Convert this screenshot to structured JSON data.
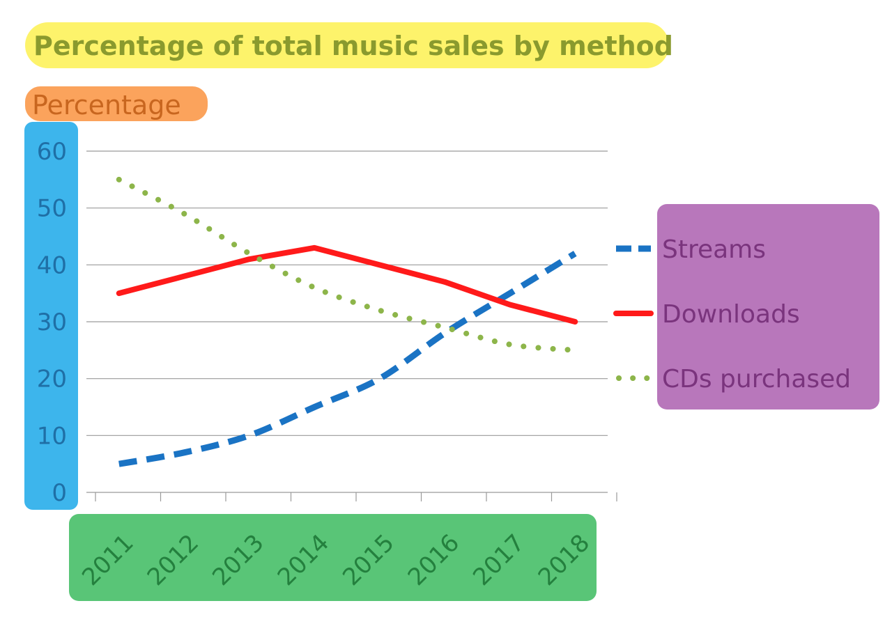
{
  "chart_data": {
    "type": "line",
    "title": "Percentage of total music sales by method",
    "ylabel": "Percentage",
    "xlabel": "",
    "categories": [
      "2011",
      "2012",
      "2013",
      "2014",
      "2015",
      "2016",
      "2017",
      "2018"
    ],
    "y_ticks": [
      "0",
      "10",
      "20",
      "30",
      "40",
      "50",
      "60"
    ],
    "ylim": [
      0,
      60
    ],
    "grid": true,
    "legend_position": "right",
    "series": [
      {
        "name": "Streams",
        "values": [
          5,
          7,
          10,
          15,
          20,
          28,
          35,
          42
        ],
        "color": "#1a73c4",
        "style": "dashed"
      },
      {
        "name": "Downloads",
        "values": [
          35,
          38,
          41,
          43,
          40,
          37,
          33,
          30
        ],
        "color": "#ff1a1a",
        "style": "solid"
      },
      {
        "name": "CDs purchased",
        "values": [
          55,
          49,
          42,
          36,
          32,
          29,
          26,
          25
        ],
        "color": "#8db54a",
        "style": "dotted"
      }
    ]
  },
  "colors": {
    "title_highlight": "#fdf36b",
    "title_text": "#8a9a2e",
    "ylabel_highlight": "#fba35c",
    "ylabel_text": "#c8661f",
    "ytick_highlight": "#3db5ec",
    "ytick_text": "#1f6fa6",
    "xtick_highlight": "#59c577",
    "xtick_text": "#24803e",
    "legend_highlight": "#b877bb",
    "legend_text": "#7a347d",
    "grid": "#9a9a9a"
  }
}
